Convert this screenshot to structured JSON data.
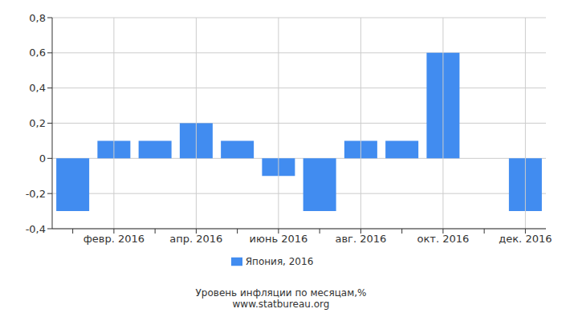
{
  "chart_data": {
    "type": "bar",
    "title": "Уровень инфляции по месяцам,%",
    "subtitle": "www.statbureau.org",
    "categories": [
      null,
      "февр. 2016",
      null,
      "апр. 2016",
      null,
      "июнь 2016",
      null,
      "авг. 2016",
      null,
      "окт. 2016",
      null,
      "дек. 2016"
    ],
    "series": [
      {
        "name": "Япония, 2016",
        "color": "#418cf0",
        "values": [
          -0.3,
          0.1,
          0.1,
          0.2,
          0.1,
          -0.1,
          -0.3,
          0.1,
          0.1,
          0.6,
          0,
          -0.3
        ]
      }
    ],
    "ylim": [
      -0.4,
      0.8
    ],
    "yticks": [
      {
        "value": -0.4,
        "label": "-0,4"
      },
      {
        "value": -0.2,
        "label": "-0,2"
      },
      0,
      {
        "value": 0.2,
        "label": "0,2"
      },
      {
        "value": 0.4,
        "label": "0,4"
      },
      {
        "value": 0.6,
        "label": "0,6"
      },
      {
        "value": 0.8,
        "label": "0,8"
      }
    ],
    "grid": true,
    "legend": "bottom"
  }
}
